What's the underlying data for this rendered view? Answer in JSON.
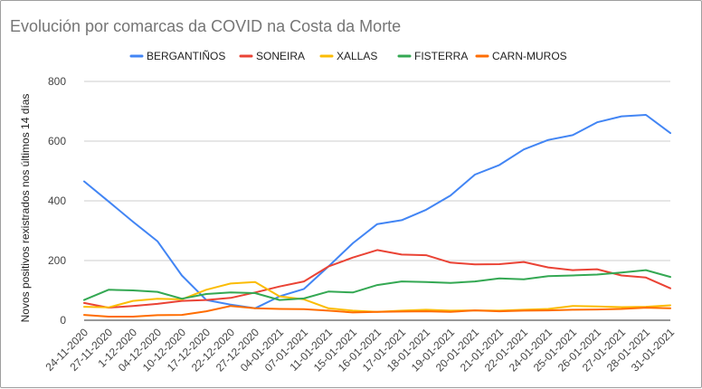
{
  "chart_data": {
    "type": "line",
    "title": "Evolución por comarcas da COVID na Costa da Morte",
    "xlabel": "",
    "ylabel": "Novos positivos rexistrados nos últimos 14 días",
    "ylim": [
      0,
      800
    ],
    "yticks": [
      0,
      200,
      400,
      600,
      800
    ],
    "grid": true,
    "legend_position": "top",
    "categories": [
      "24-11-2020",
      "27-11-2020",
      "1-12-2020",
      "04-12-2020",
      "10-12-2020",
      "17-12-2020",
      "22-12-2020",
      "27-12-2020",
      "04-01-2021",
      "07-01-2021",
      "11-01-2021",
      "15-01-2021",
      "16-01-2021",
      "17-01-2021",
      "18-01-2021",
      "19-01-2021",
      "20-01-2021",
      "21-01-2021",
      "22-01-2021",
      "24-01-2021",
      "25-01-2021",
      "26-01-2021",
      "27-01-2021",
      "28-01-2021",
      "31-01-2021"
    ],
    "series": [
      {
        "name": "BERGANTIÑOS",
        "color": "#4285f4",
        "values": [
          465,
          398,
          330,
          265,
          150,
          68,
          52,
          40,
          80,
          105,
          180,
          258,
          322,
          335,
          370,
          418,
          488,
          520,
          572,
          604,
          620,
          663,
          683,
          688,
          627
        ]
      },
      {
        "name": "SONEIRA",
        "color": "#ea4335",
        "values": [
          58,
          42,
          48,
          55,
          65,
          68,
          75,
          93,
          113,
          130,
          180,
          210,
          235,
          220,
          218,
          193,
          187,
          188,
          195,
          177,
          168,
          171,
          150,
          143,
          107
        ]
      },
      {
        "name": "XALLAS",
        "color": "#fbbc04",
        "values": [
          45,
          43,
          65,
          72,
          70,
          102,
          123,
          128,
          80,
          70,
          40,
          32,
          28,
          32,
          35,
          32,
          33,
          32,
          35,
          38,
          48,
          46,
          44,
          45,
          50
        ]
      },
      {
        "name": "FISTERRA",
        "color": "#34a853",
        "values": [
          68,
          102,
          100,
          95,
          72,
          88,
          93,
          91,
          68,
          73,
          96,
          93,
          118,
          130,
          128,
          125,
          130,
          140,
          137,
          148,
          150,
          153,
          160,
          168,
          145
        ]
      },
      {
        "name": "CARN-MUROS",
        "color": "#ff6d01",
        "values": [
          18,
          12,
          12,
          17,
          18,
          30,
          48,
          40,
          38,
          37,
          32,
          26,
          28,
          29,
          30,
          28,
          33,
          30,
          32,
          33,
          35,
          36,
          38,
          42,
          40
        ]
      }
    ]
  }
}
